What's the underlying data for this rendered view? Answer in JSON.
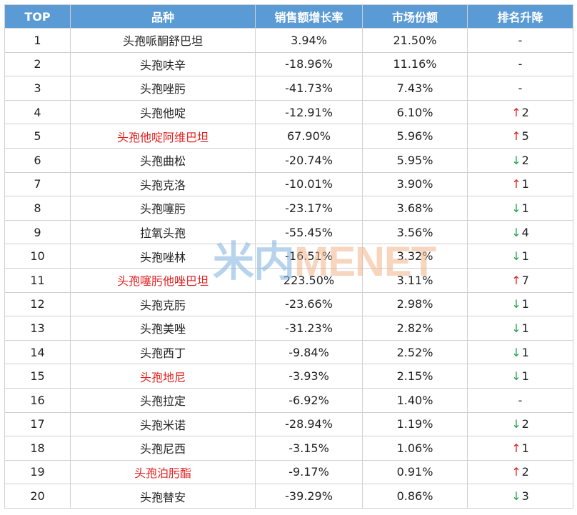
{
  "columns": [
    "TOP",
    "品种",
    "销售额增长率",
    "市场份额",
    "排名升降"
  ],
  "colors": {
    "header_bg": "#5b9bd5",
    "highlight_text": "#e02020",
    "arrow_up": "#e02020",
    "arrow_down": "#22a04a"
  },
  "rows": [
    {
      "rank": "1",
      "name": "头孢哌酮舒巴坦",
      "growth": "3.94%",
      "share": "21.50%",
      "change_arrow": "",
      "change_value": "-",
      "direction": "none",
      "highlight": false
    },
    {
      "rank": "2",
      "name": "头孢呋辛",
      "growth": "-18.96%",
      "share": "11.16%",
      "change_arrow": "",
      "change_value": "-",
      "direction": "none",
      "highlight": false
    },
    {
      "rank": "3",
      "name": "头孢唑肟",
      "growth": "-41.73%",
      "share": "7.43%",
      "change_arrow": "",
      "change_value": "-",
      "direction": "none",
      "highlight": false
    },
    {
      "rank": "4",
      "name": "头孢他啶",
      "growth": "-12.91%",
      "share": "6.10%",
      "change_arrow": "↑",
      "change_value": "2",
      "direction": "up",
      "highlight": false
    },
    {
      "rank": "5",
      "name": "头孢他啶阿维巴坦",
      "growth": "67.90%",
      "share": "5.96%",
      "change_arrow": "↑",
      "change_value": "5",
      "direction": "up",
      "highlight": true
    },
    {
      "rank": "6",
      "name": "头孢曲松",
      "growth": "-20.74%",
      "share": "5.95%",
      "change_arrow": "↓",
      "change_value": "2",
      "direction": "down",
      "highlight": false
    },
    {
      "rank": "7",
      "name": "头孢克洛",
      "growth": "-10.01%",
      "share": "3.90%",
      "change_arrow": "↑",
      "change_value": "1",
      "direction": "up",
      "highlight": false
    },
    {
      "rank": "8",
      "name": "头孢噻肟",
      "growth": "-23.17%",
      "share": "3.68%",
      "change_arrow": "↓",
      "change_value": "1",
      "direction": "down",
      "highlight": false
    },
    {
      "rank": "9",
      "name": "拉氧头孢",
      "growth": "-55.45%",
      "share": "3.56%",
      "change_arrow": "↓",
      "change_value": "4",
      "direction": "down",
      "highlight": false
    },
    {
      "rank": "10",
      "name": "头孢唑林",
      "growth": "-16.51%",
      "share": "3.32%",
      "change_arrow": "↓",
      "change_value": "1",
      "direction": "down",
      "highlight": false
    },
    {
      "rank": "11",
      "name": "头孢噻肟他唑巴坦",
      "growth": "223.50%",
      "share": "3.11%",
      "change_arrow": "↑",
      "change_value": "7",
      "direction": "up",
      "highlight": true
    },
    {
      "rank": "12",
      "name": "头孢克肟",
      "growth": "-23.66%",
      "share": "2.98%",
      "change_arrow": "↓",
      "change_value": "1",
      "direction": "down",
      "highlight": false
    },
    {
      "rank": "13",
      "name": "头孢美唑",
      "growth": "-31.23%",
      "share": "2.82%",
      "change_arrow": "↓",
      "change_value": "1",
      "direction": "down",
      "highlight": false
    },
    {
      "rank": "14",
      "name": "头孢西丁",
      "growth": "-9.84%",
      "share": "2.52%",
      "change_arrow": "↓",
      "change_value": "1",
      "direction": "down",
      "highlight": false
    },
    {
      "rank": "15",
      "name": "头孢地尼",
      "growth": "-3.93%",
      "share": "2.15%",
      "change_arrow": "↓",
      "change_value": "1",
      "direction": "down",
      "highlight": true
    },
    {
      "rank": "16",
      "name": "头孢拉定",
      "growth": "-6.92%",
      "share": "1.40%",
      "change_arrow": "",
      "change_value": "-",
      "direction": "none",
      "highlight": false
    },
    {
      "rank": "17",
      "name": "头孢米诺",
      "growth": "-28.94%",
      "share": "1.19%",
      "change_arrow": "↓",
      "change_value": "2",
      "direction": "down",
      "highlight": false
    },
    {
      "rank": "18",
      "name": "头孢尼西",
      "growth": "-3.15%",
      "share": "1.06%",
      "change_arrow": "↑",
      "change_value": "1",
      "direction": "up",
      "highlight": false
    },
    {
      "rank": "19",
      "name": "头孢泊肟酯",
      "growth": "-9.17%",
      "share": "0.91%",
      "change_arrow": "↑",
      "change_value": "2",
      "direction": "up",
      "highlight": true
    },
    {
      "rank": "20",
      "name": "头孢替安",
      "growth": "-39.29%",
      "share": "0.86%",
      "change_arrow": "↓",
      "change_value": "3",
      "direction": "down",
      "highlight": false
    }
  ],
  "watermark": {
    "cn": "米内",
    "en": "MENET"
  }
}
